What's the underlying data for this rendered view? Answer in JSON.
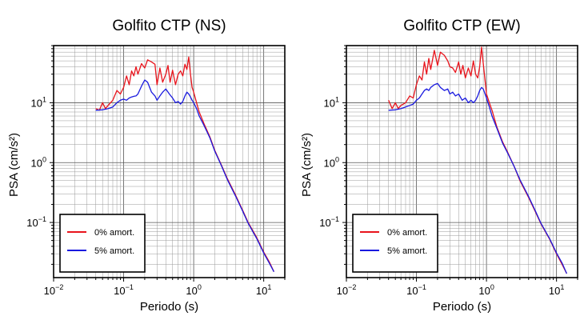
{
  "chart_data": [
    {
      "type": "line",
      "title": "Golfito CTP (NS)",
      "xlabel": "Periodo (s)",
      "ylabel": "PSA (cm/s²)",
      "xscale": "log",
      "yscale": "log",
      "xlim": [
        0.01,
        20
      ],
      "ylim": [
        0.012,
        90
      ],
      "xticks": [
        0.01,
        0.1,
        1,
        10
      ],
      "xtick_labels": [
        {
          "base": "10",
          "exp": "−2"
        },
        {
          "base": "10",
          "exp": "−1"
        },
        {
          "base": "10",
          "exp": "0"
        },
        {
          "base": "10",
          "exp": "1"
        }
      ],
      "yticks": [
        0.1,
        1,
        10
      ],
      "ytick_labels": [
        {
          "base": "10",
          "exp": "−1"
        },
        {
          "base": "10",
          "exp": "0"
        },
        {
          "base": "10",
          "exp": "1"
        }
      ],
      "grid": true,
      "legend": "bottom-left",
      "series": [
        {
          "name": "0% amort.",
          "color": "#e8141c",
          "x": [
            0.04,
            0.045,
            0.05,
            0.055,
            0.06,
            0.07,
            0.08,
            0.09,
            0.1,
            0.11,
            0.12,
            0.13,
            0.14,
            0.15,
            0.16,
            0.18,
            0.2,
            0.22,
            0.25,
            0.28,
            0.3,
            0.33,
            0.36,
            0.4,
            0.43,
            0.46,
            0.5,
            0.55,
            0.6,
            0.65,
            0.7,
            0.75,
            0.8,
            0.85,
            0.9,
            0.95,
            1.0,
            1.1,
            1.2,
            1.4,
            1.7,
            2.0,
            2.5,
            3.0,
            4.0,
            5.0,
            6.0,
            8.0,
            10.0,
            12.0,
            14.0
          ],
          "y": [
            8,
            7.5,
            10,
            8,
            9,
            11,
            16,
            14,
            18,
            28,
            20,
            34,
            28,
            40,
            30,
            45,
            38,
            52,
            48,
            44,
            20,
            38,
            22,
            30,
            42,
            22,
            35,
            20,
            30,
            34,
            28,
            44,
            36,
            58,
            30,
            18,
            15,
            10,
            7,
            4.5,
            2.7,
            1.6,
            0.9,
            0.55,
            0.28,
            0.16,
            0.1,
            0.055,
            0.032,
            0.022,
            0.015
          ]
        },
        {
          "name": "5% amort.",
          "color": "#1a1adf",
          "x": [
            0.04,
            0.05,
            0.06,
            0.07,
            0.08,
            0.09,
            0.1,
            0.11,
            0.12,
            0.13,
            0.14,
            0.15,
            0.16,
            0.18,
            0.2,
            0.22,
            0.25,
            0.28,
            0.3,
            0.33,
            0.36,
            0.4,
            0.45,
            0.5,
            0.55,
            0.6,
            0.65,
            0.7,
            0.75,
            0.8,
            0.85,
            0.9,
            0.95,
            1.0,
            1.1,
            1.2,
            1.4,
            1.7,
            2.0,
            2.5,
            3.0,
            4.0,
            5.0,
            6.0,
            8.0,
            10.0,
            12.0,
            14.0
          ],
          "y": [
            7.5,
            7.6,
            8,
            8.5,
            10,
            11,
            11.5,
            11,
            12,
            12.5,
            12.8,
            13,
            14,
            19,
            24,
            22,
            15,
            13,
            11,
            13,
            15,
            17,
            14,
            12,
            10,
            10.5,
            9.5,
            10.5,
            13,
            15,
            14,
            12.5,
            11,
            10,
            8,
            6,
            4.2,
            2.6,
            1.55,
            0.88,
            0.53,
            0.27,
            0.155,
            0.097,
            0.053,
            0.031,
            0.021,
            0.015
          ]
        }
      ]
    },
    {
      "type": "line",
      "title": "Golfito CTP (EW)",
      "xlabel": "Periodo (s)",
      "ylabel": "PSA (cm/s²)",
      "xscale": "log",
      "yscale": "log",
      "xlim": [
        0.01,
        20
      ],
      "ylim": [
        0.012,
        90
      ],
      "xticks": [
        0.01,
        0.1,
        1,
        10
      ],
      "xtick_labels": [
        {
          "base": "10",
          "exp": "−2"
        },
        {
          "base": "10",
          "exp": "−1"
        },
        {
          "base": "10",
          "exp": "0"
        },
        {
          "base": "10",
          "exp": "1"
        }
      ],
      "yticks": [
        0.1,
        1,
        10
      ],
      "ytick_labels": [
        {
          "base": "10",
          "exp": "−1"
        },
        {
          "base": "10",
          "exp": "0"
        },
        {
          "base": "10",
          "exp": "1"
        }
      ],
      "grid": true,
      "legend": "bottom-left",
      "series": [
        {
          "name": "0% amort.",
          "color": "#e8141c",
          "x": [
            0.04,
            0.045,
            0.05,
            0.055,
            0.06,
            0.07,
            0.08,
            0.09,
            0.1,
            0.11,
            0.12,
            0.13,
            0.14,
            0.15,
            0.16,
            0.18,
            0.2,
            0.22,
            0.25,
            0.28,
            0.3,
            0.33,
            0.36,
            0.4,
            0.43,
            0.46,
            0.5,
            0.55,
            0.6,
            0.65,
            0.7,
            0.75,
            0.8,
            0.85,
            0.9,
            1.0,
            1.1,
            1.2,
            1.4,
            1.7,
            2.0,
            2.5,
            3.0,
            4.0,
            5.0,
            6.0,
            8.0,
            10.0,
            12.0,
            14.0
          ],
          "y": [
            11,
            8,
            10,
            8,
            9,
            10,
            13,
            12,
            20,
            28,
            24,
            48,
            30,
            55,
            36,
            75,
            42,
            70,
            62,
            50,
            40,
            38,
            32,
            48,
            30,
            42,
            26,
            38,
            28,
            50,
            30,
            26,
            40,
            85,
            45,
            14,
            10,
            7.5,
            4,
            2.2,
            1.5,
            0.85,
            0.5,
            0.26,
            0.15,
            0.095,
            0.052,
            0.03,
            0.02,
            0.014
          ]
        },
        {
          "name": "5% amort.",
          "color": "#1a1adf",
          "x": [
            0.04,
            0.05,
            0.06,
            0.07,
            0.08,
            0.09,
            0.1,
            0.11,
            0.12,
            0.13,
            0.14,
            0.15,
            0.16,
            0.18,
            0.2,
            0.22,
            0.25,
            0.28,
            0.3,
            0.33,
            0.36,
            0.4,
            0.45,
            0.5,
            0.55,
            0.6,
            0.65,
            0.7,
            0.75,
            0.8,
            0.85,
            0.9,
            1.0,
            1.1,
            1.2,
            1.4,
            1.7,
            2.0,
            2.5,
            3.0,
            4.0,
            5.0,
            6.0,
            8.0,
            10.0,
            12.0,
            14.0
          ],
          "y": [
            7.5,
            7.6,
            8,
            8.5,
            9,
            9.5,
            11,
            12,
            14,
            16,
            17,
            16,
            18,
            20,
            21,
            18,
            16,
            17,
            14,
            15,
            13,
            14,
            11,
            12,
            10,
            11,
            10,
            11,
            13,
            16,
            18,
            17,
            12,
            8.5,
            6,
            3.8,
            2.1,
            1.45,
            0.85,
            0.52,
            0.27,
            0.155,
            0.097,
            0.053,
            0.031,
            0.021,
            0.014
          ]
        }
      ]
    }
  ]
}
